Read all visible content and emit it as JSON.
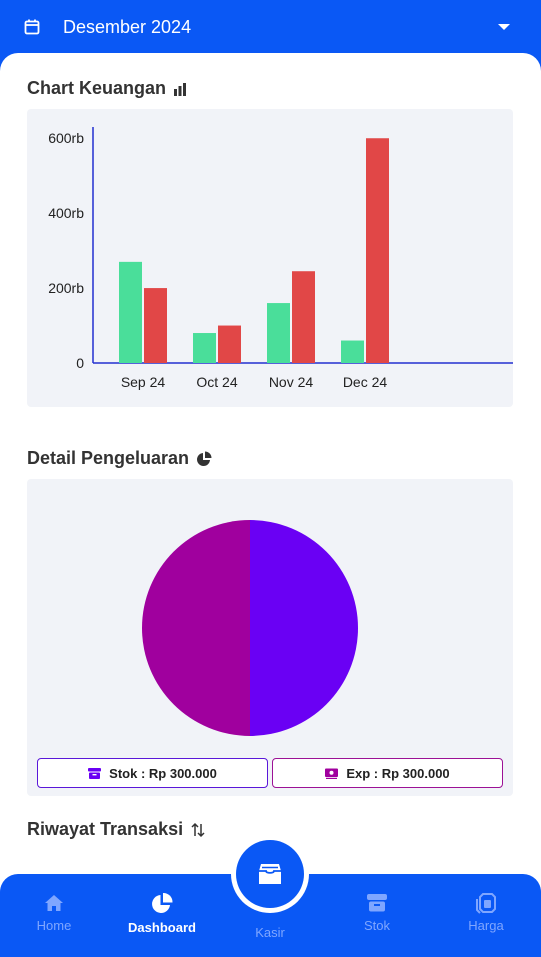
{
  "header": {
    "month": "Desember 2024"
  },
  "sections": {
    "chart_title": "Chart Keuangan",
    "pie_title": "Detail Pengeluaran",
    "history_title": "Riwayat Transaksi"
  },
  "chart_data": [
    {
      "type": "bar",
      "categories": [
        "Sep 24",
        "Oct 24",
        "Nov 24",
        "Dec 24"
      ],
      "series": [
        {
          "values": [
            270,
            80,
            160,
            60
          ],
          "color": "#4ADE9A"
        },
        {
          "values": [
            200,
            100,
            245,
            600
          ],
          "color": "#E14747"
        }
      ],
      "yticks": [
        "0",
        "200rb",
        "400rb",
        "600rb"
      ],
      "ytick_values": [
        0,
        200,
        400,
        600
      ],
      "ylim": [
        0,
        630
      ],
      "unit": "rb",
      "grid": false
    },
    {
      "type": "pie",
      "slices": [
        {
          "label": "Stok",
          "value": 300000,
          "color": "#6A00F4"
        },
        {
          "label": "Exp",
          "value": 300000,
          "color": "#A0009E"
        }
      ]
    }
  ],
  "legend": {
    "stok": "Stok : Rp 300.000",
    "exp": "Exp : Rp 300.000",
    "stok_color": "#6A00F4",
    "exp_color": "#A0009E"
  },
  "nav": {
    "home": "Home",
    "dashboard": "Dashboard",
    "kasir": "Kasir",
    "stok": "Stok",
    "harga": "Harga"
  },
  "colors": {
    "brand": "#0A58F5",
    "card_bg": "#F1F3F8"
  },
  "icons": {
    "header": "calendar-icon",
    "chart": "bar-chart-icon",
    "pie": "pie-chart-icon",
    "history": "swap-vertical-icon"
  }
}
